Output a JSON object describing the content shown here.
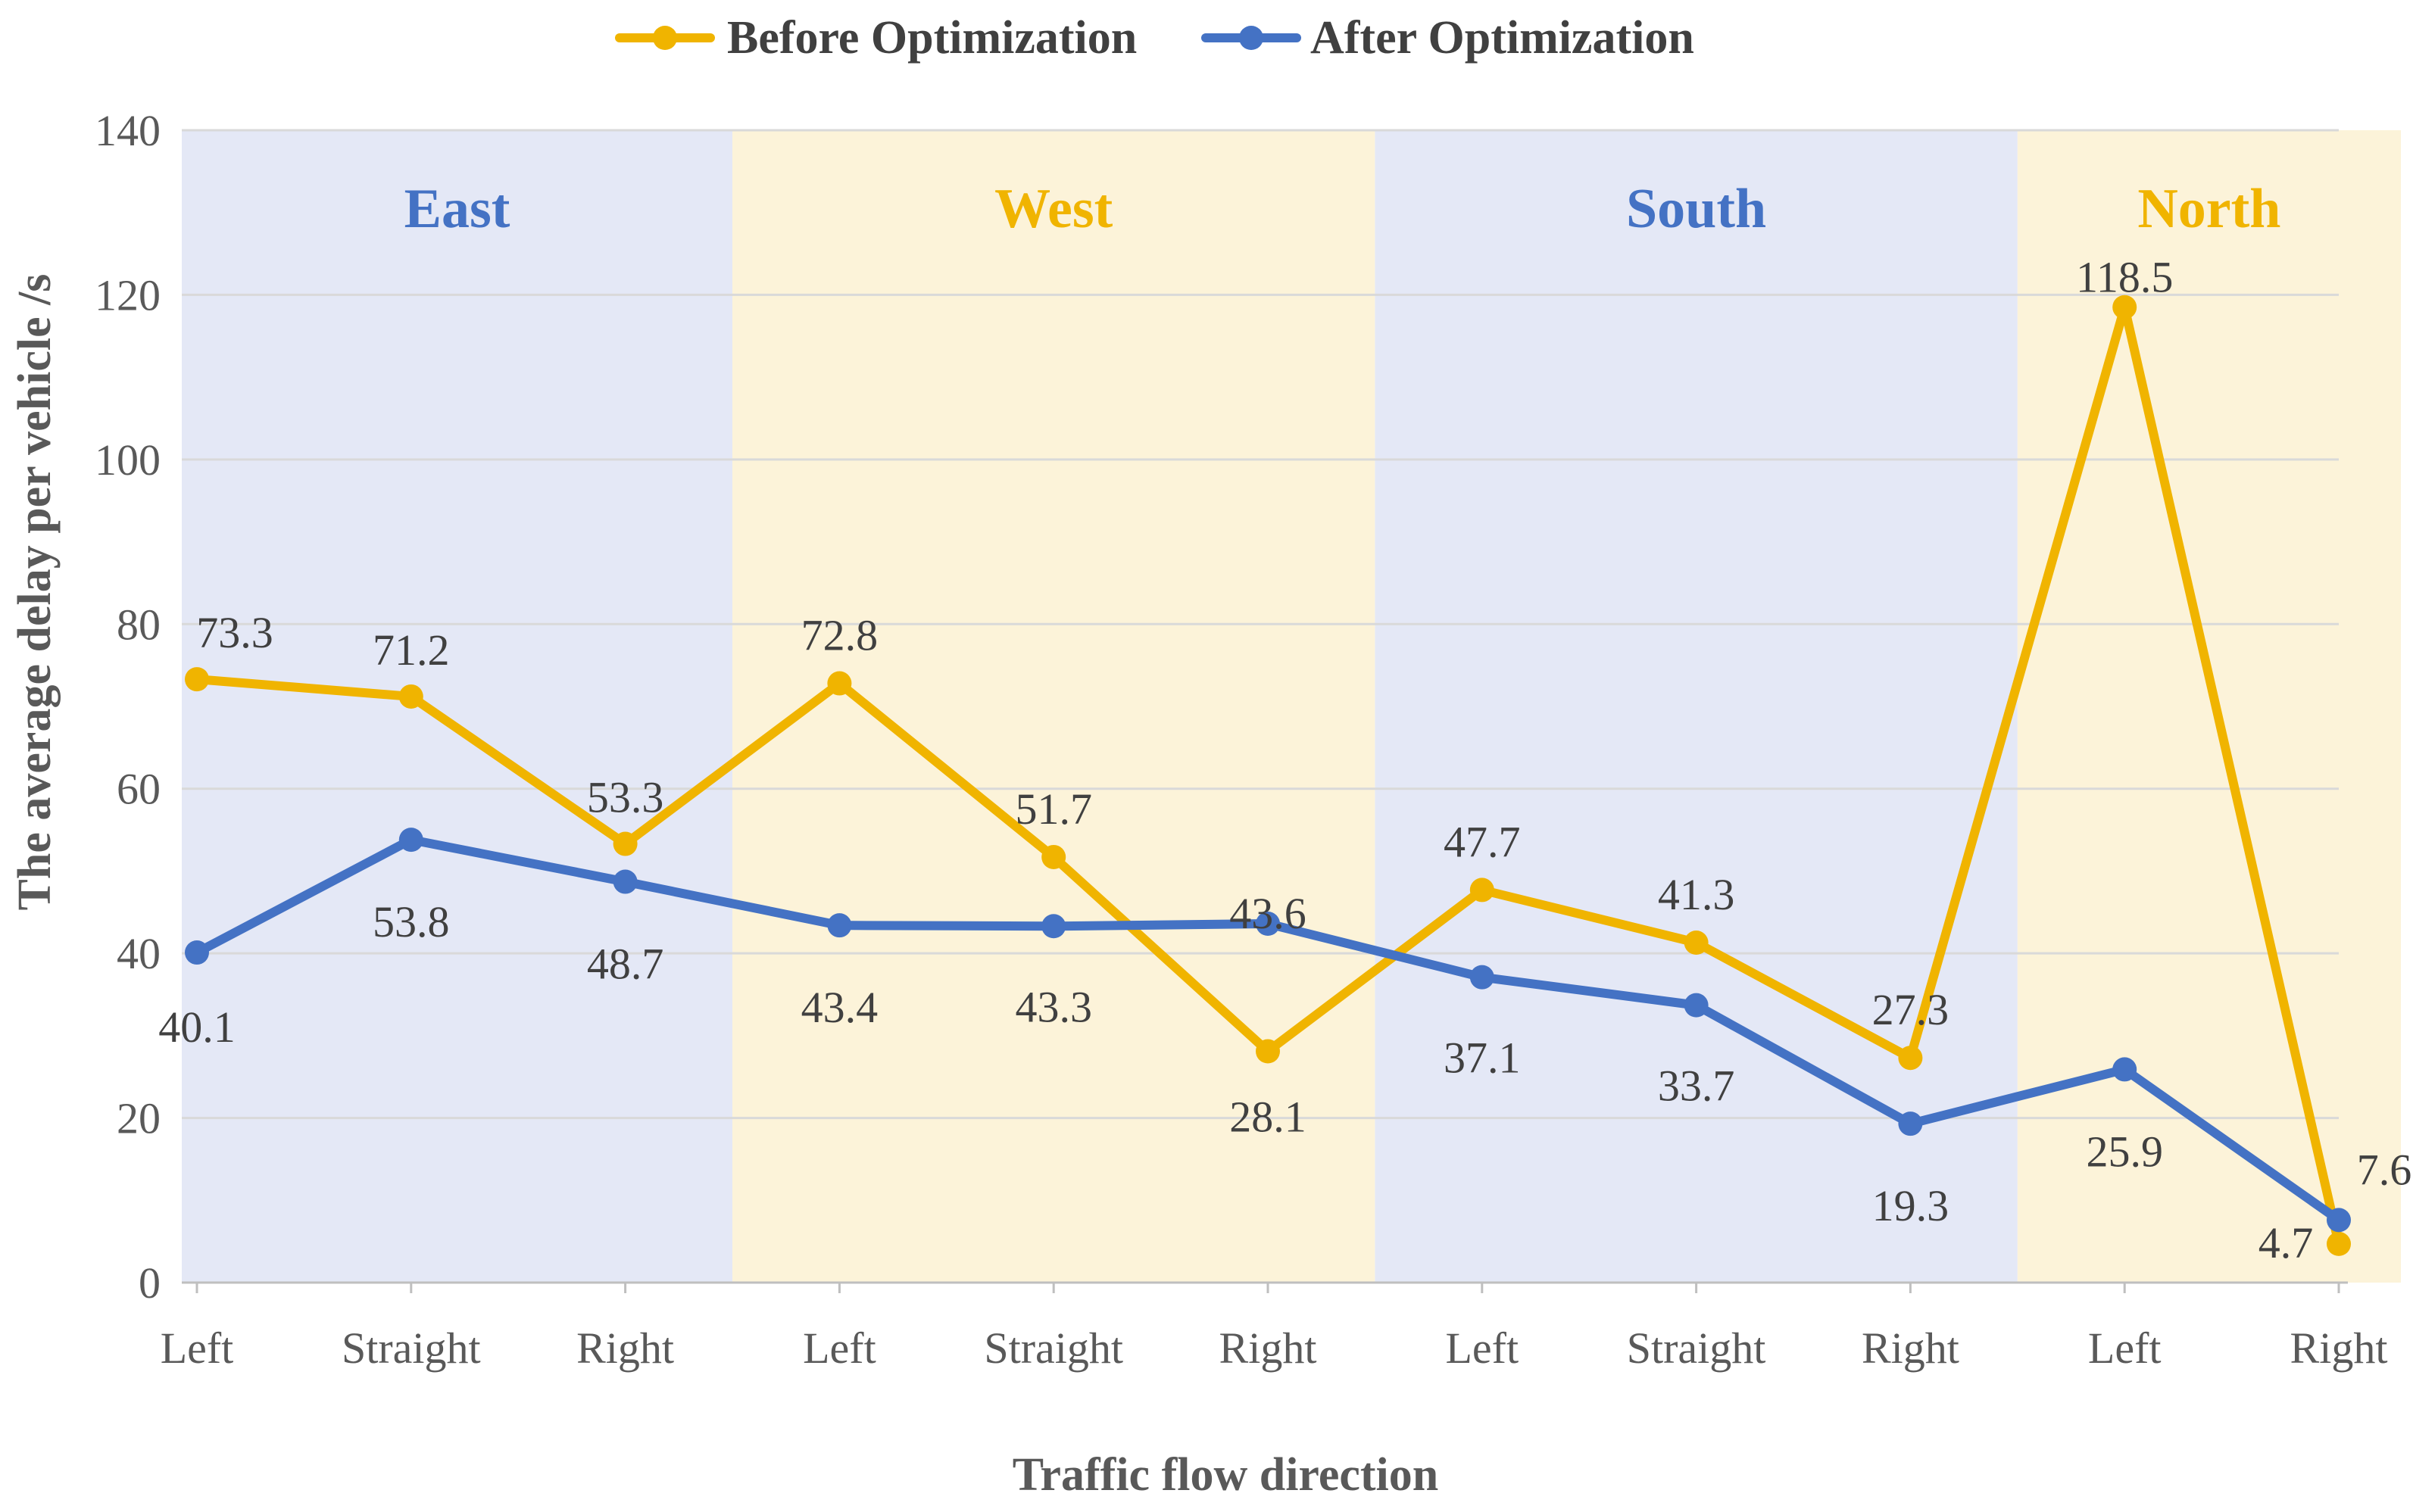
{
  "chart_data": {
    "type": "line",
    "title": "",
    "xlabel": "Traffic flow direction",
    "ylabel": "The average delay per vehicle /s",
    "ylim": [
      0,
      140
    ],
    "yticks": [
      0,
      20,
      40,
      60,
      80,
      100,
      120,
      140
    ],
    "categories": [
      "Left",
      "Straight",
      "Right",
      "Left",
      "Straight",
      "Right",
      "Left",
      "Straight",
      "Right",
      "Left",
      "Right"
    ],
    "groups": [
      {
        "name": "East",
        "start": 0,
        "end": 2,
        "color": "#4472C4",
        "bg": "#E4E8F6"
      },
      {
        "name": "West",
        "start": 3,
        "end": 5,
        "color": "#F0B400",
        "bg": "#FCF3D9"
      },
      {
        "name": "South",
        "start": 6,
        "end": 8,
        "color": "#4472C4",
        "bg": "#E4E8F6"
      },
      {
        "name": "North",
        "start": 9,
        "end": 10,
        "color": "#F0B400",
        "bg": "#FCF3D9"
      }
    ],
    "series": [
      {
        "name": "Before Optimization",
        "color": "#F0B400",
        "values": [
          73.3,
          71.2,
          53.3,
          72.8,
          51.7,
          28.1,
          47.7,
          41.3,
          27.3,
          118.5,
          4.7
        ]
      },
      {
        "name": "After Optimization",
        "color": "#4472C4",
        "values": [
          40.1,
          53.8,
          48.7,
          43.4,
          43.3,
          43.6,
          37.1,
          33.7,
          19.3,
          25.9,
          7.6
        ]
      }
    ],
    "legend": "top-center",
    "grid": true
  }
}
